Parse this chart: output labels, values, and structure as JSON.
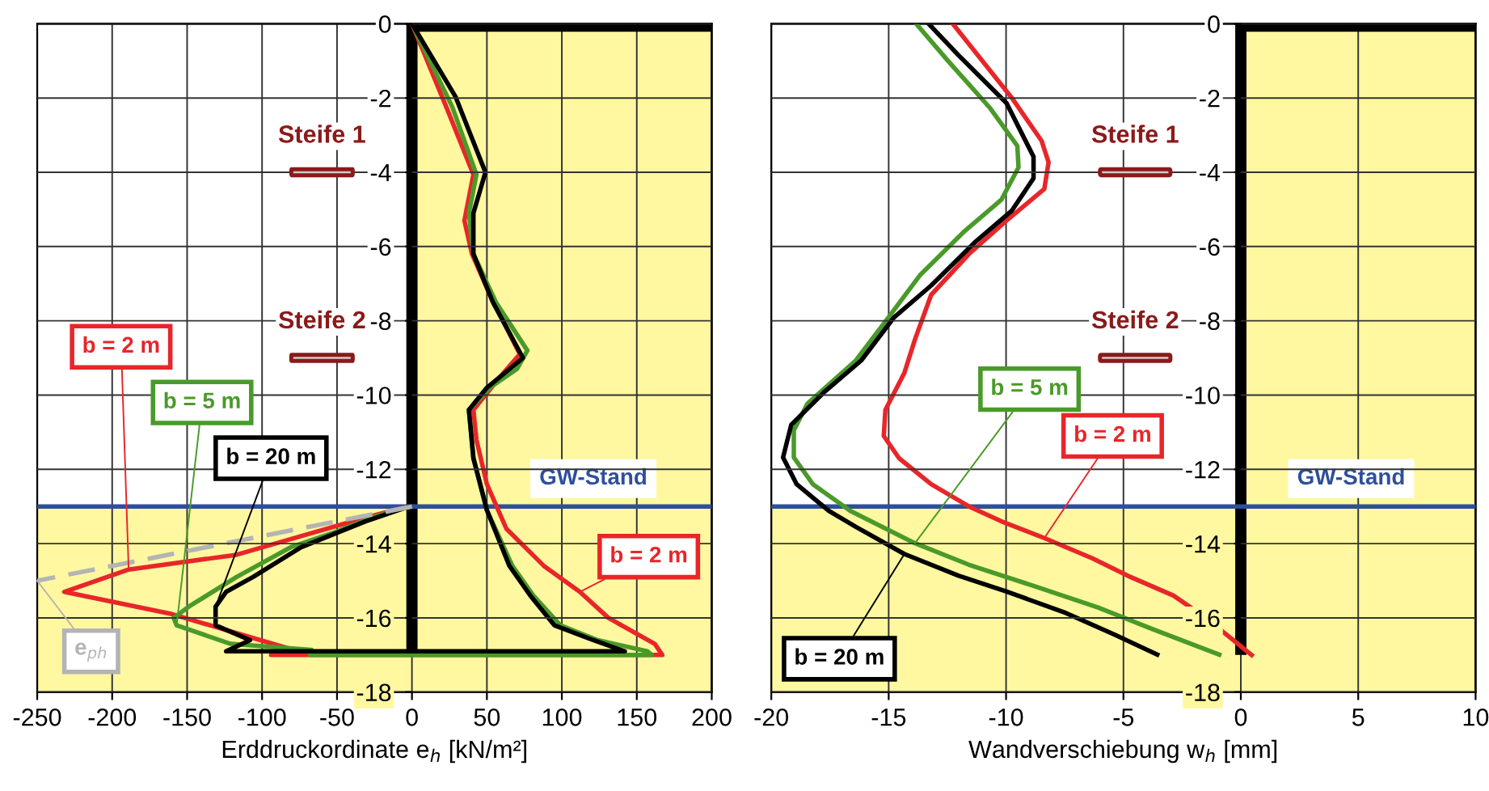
{
  "chart_data": [
    {
      "type": "line",
      "xlabel": "Erddruckordinate e$_{h}$ [kN/m²]",
      "xlim": [
        -250,
        200
      ],
      "xticks": [
        -250,
        -200,
        -150,
        -100,
        -50,
        0,
        50,
        100,
        150,
        200
      ],
      "ylim": [
        -18,
        0
      ],
      "yticks": [
        -18,
        -16,
        -14,
        -12,
        -10,
        -8,
        -6,
        -4,
        -2,
        0
      ],
      "grid": true,
      "series": [
        {
          "name": "b = 2 m",
          "color": "#e8262a",
          "x": [
            0,
            23,
            41,
            35,
            40,
            52,
            72,
            59,
            41,
            43,
            50,
            63,
            88,
            112,
            131,
            162,
            167,
            -94,
            -76,
            -160,
            -232,
            -189,
            -117,
            -74,
            -31,
            -2
          ],
          "values": [
            0,
            -2.25,
            -4.06,
            -5.3,
            -6.2,
            -7.3,
            -8.9,
            -9.5,
            -10.4,
            -11.2,
            -12.4,
            -13.6,
            -14.6,
            -15.3,
            -16,
            -16.7,
            -17,
            -17,
            -16.9,
            -15.9,
            -15.3,
            -14.7,
            -14.3,
            -13.8,
            -13.3,
            -13
          ]
        },
        {
          "name": "b = 5 m",
          "color": "#4a9a2a",
          "x": [
            0,
            27,
            43,
            38,
            41,
            56,
            77,
            70,
            52,
            38,
            41,
            50,
            67,
            81,
            99,
            124,
            157,
            160,
            -68,
            -67,
            -121,
            -157,
            -159,
            -149,
            -117,
            -81,
            -52,
            -27,
            -2
          ],
          "values": [
            0,
            -2.25,
            -4.06,
            -5.1,
            -6.2,
            -7.5,
            -8.8,
            -9.3,
            -9.8,
            -10.4,
            -11.7,
            -13.1,
            -14.6,
            -15.4,
            -16.2,
            -16.6,
            -16.9,
            -17,
            -17,
            -16.86,
            -16.7,
            -16.2,
            -16,
            -15.7,
            -14.9,
            -14.1,
            -13.7,
            -13.3,
            -13
          ]
        },
        {
          "name": "b = 20 m",
          "color": "#000000",
          "x": [
            0,
            29,
            49,
            41,
            41,
            54,
            74,
            50,
            38,
            41,
            50,
            65,
            79,
            95,
            121,
            142,
            -124,
            -108,
            -131,
            -131,
            -124,
            -106,
            -74,
            -31,
            -2
          ],
          "values": [
            0,
            -1.96,
            -4,
            -5.1,
            -6.2,
            -7.5,
            -9,
            -9.8,
            -10.4,
            -11.7,
            -13.1,
            -14.6,
            -15.4,
            -16.2,
            -16.6,
            -16.9,
            -16.9,
            -16.6,
            -16.2,
            -15.7,
            -15.3,
            -14.9,
            -14.1,
            -13.4,
            -13
          ]
        },
        {
          "name": "e$_{ph}$",
          "color": "#b4b4b4",
          "line_style": "dashed",
          "x": [
            0,
            -250
          ],
          "values": [
            -13,
            -15
          ]
        }
      ],
      "ref_lines": [
        {
          "axis": "y",
          "value": -13,
          "label": "GW-Stand",
          "color": "#2e4f9c"
        }
      ],
      "annotations": [
        "Steife 1",
        "Steife 2",
        {
          "text": "b = 2 m",
          "x": 112,
          "y": -15.3
        }
      ]
    },
    {
      "type": "line",
      "xlabel": "Wandverschiebung w$_{h}$ [mm]",
      "xlim": [
        -20,
        10
      ],
      "xticks": [
        -20,
        -15,
        -10,
        -5,
        0,
        5,
        10
      ],
      "ylim": [
        -18,
        0
      ],
      "yticks": [
        -18,
        -16,
        -14,
        -12,
        -10,
        -8,
        -6,
        -4,
        -2,
        0
      ],
      "grid": true,
      "series": [
        {
          "name": "b = 2 m",
          "color": "#e8262a",
          "x": [
            -12.27,
            -9.75,
            -8.49,
            -8.19,
            -8.37,
            -9.98,
            -11.58,
            -13.19,
            -13.88,
            -14.33,
            -15.14,
            -15.21,
            -14.56,
            -13.19,
            -11.58,
            -10.2,
            -8.37,
            -6.31,
            -4.7,
            -2.87,
            -1.49,
            0.46
          ],
          "values": [
            0,
            -2,
            -3.15,
            -3.73,
            -4.45,
            -5.3,
            -6.2,
            -7.3,
            -8.5,
            -9.4,
            -10.4,
            -11.1,
            -11.7,
            -12.4,
            -13,
            -13.4,
            -13.85,
            -14.4,
            -14.9,
            -15.4,
            -16,
            -17
          ]
        },
        {
          "name": "b = 5 m",
          "color": "#4a9a2a",
          "x": [
            -13.83,
            -12.5,
            -10.67,
            -9.52,
            -9.47,
            -10.2,
            -11.81,
            -13.65,
            -15.02,
            -16.4,
            -18.46,
            -19.04,
            -19.04,
            -18.23,
            -16.63,
            -13.88,
            -11.58,
            -8.83,
            -6.08,
            -3.78,
            -0.92
          ],
          "values": [
            0,
            -0.98,
            -2.28,
            -3.29,
            -3.87,
            -4.74,
            -5.61,
            -6.76,
            -7.92,
            -9.07,
            -10.23,
            -10.95,
            -11.68,
            -12.4,
            -13.12,
            -13.99,
            -14.57,
            -15.14,
            -15.72,
            -16.3,
            -16.99
          ]
        },
        {
          "name": "b = 20 m",
          "color": "#000000",
          "x": [
            -13.3,
            -12.04,
            -9.98,
            -8.83,
            -8.83,
            -9.75,
            -11.35,
            -13.19,
            -14.79,
            -16.17,
            -17.78,
            -19.15,
            -19.5,
            -18.92,
            -17.55,
            -16.4,
            -14.33,
            -12.04,
            -9.98,
            -7.45,
            -5.39,
            -3.56
          ],
          "values": [
            0,
            -0.84,
            -2.14,
            -3.58,
            -4.16,
            -5.03,
            -5.9,
            -7.05,
            -7.92,
            -9.07,
            -9.94,
            -10.8,
            -11.68,
            -12.4,
            -13.12,
            -13.55,
            -14.28,
            -14.86,
            -15.29,
            -15.87,
            -16.45,
            -16.99
          ]
        }
      ],
      "ref_lines": [
        {
          "axis": "y",
          "value": -13,
          "label": "GW-Stand",
          "color": "#2e4f9c"
        }
      ],
      "annotations": [
        "Steife 1",
        "Steife 2"
      ]
    }
  ]
}
